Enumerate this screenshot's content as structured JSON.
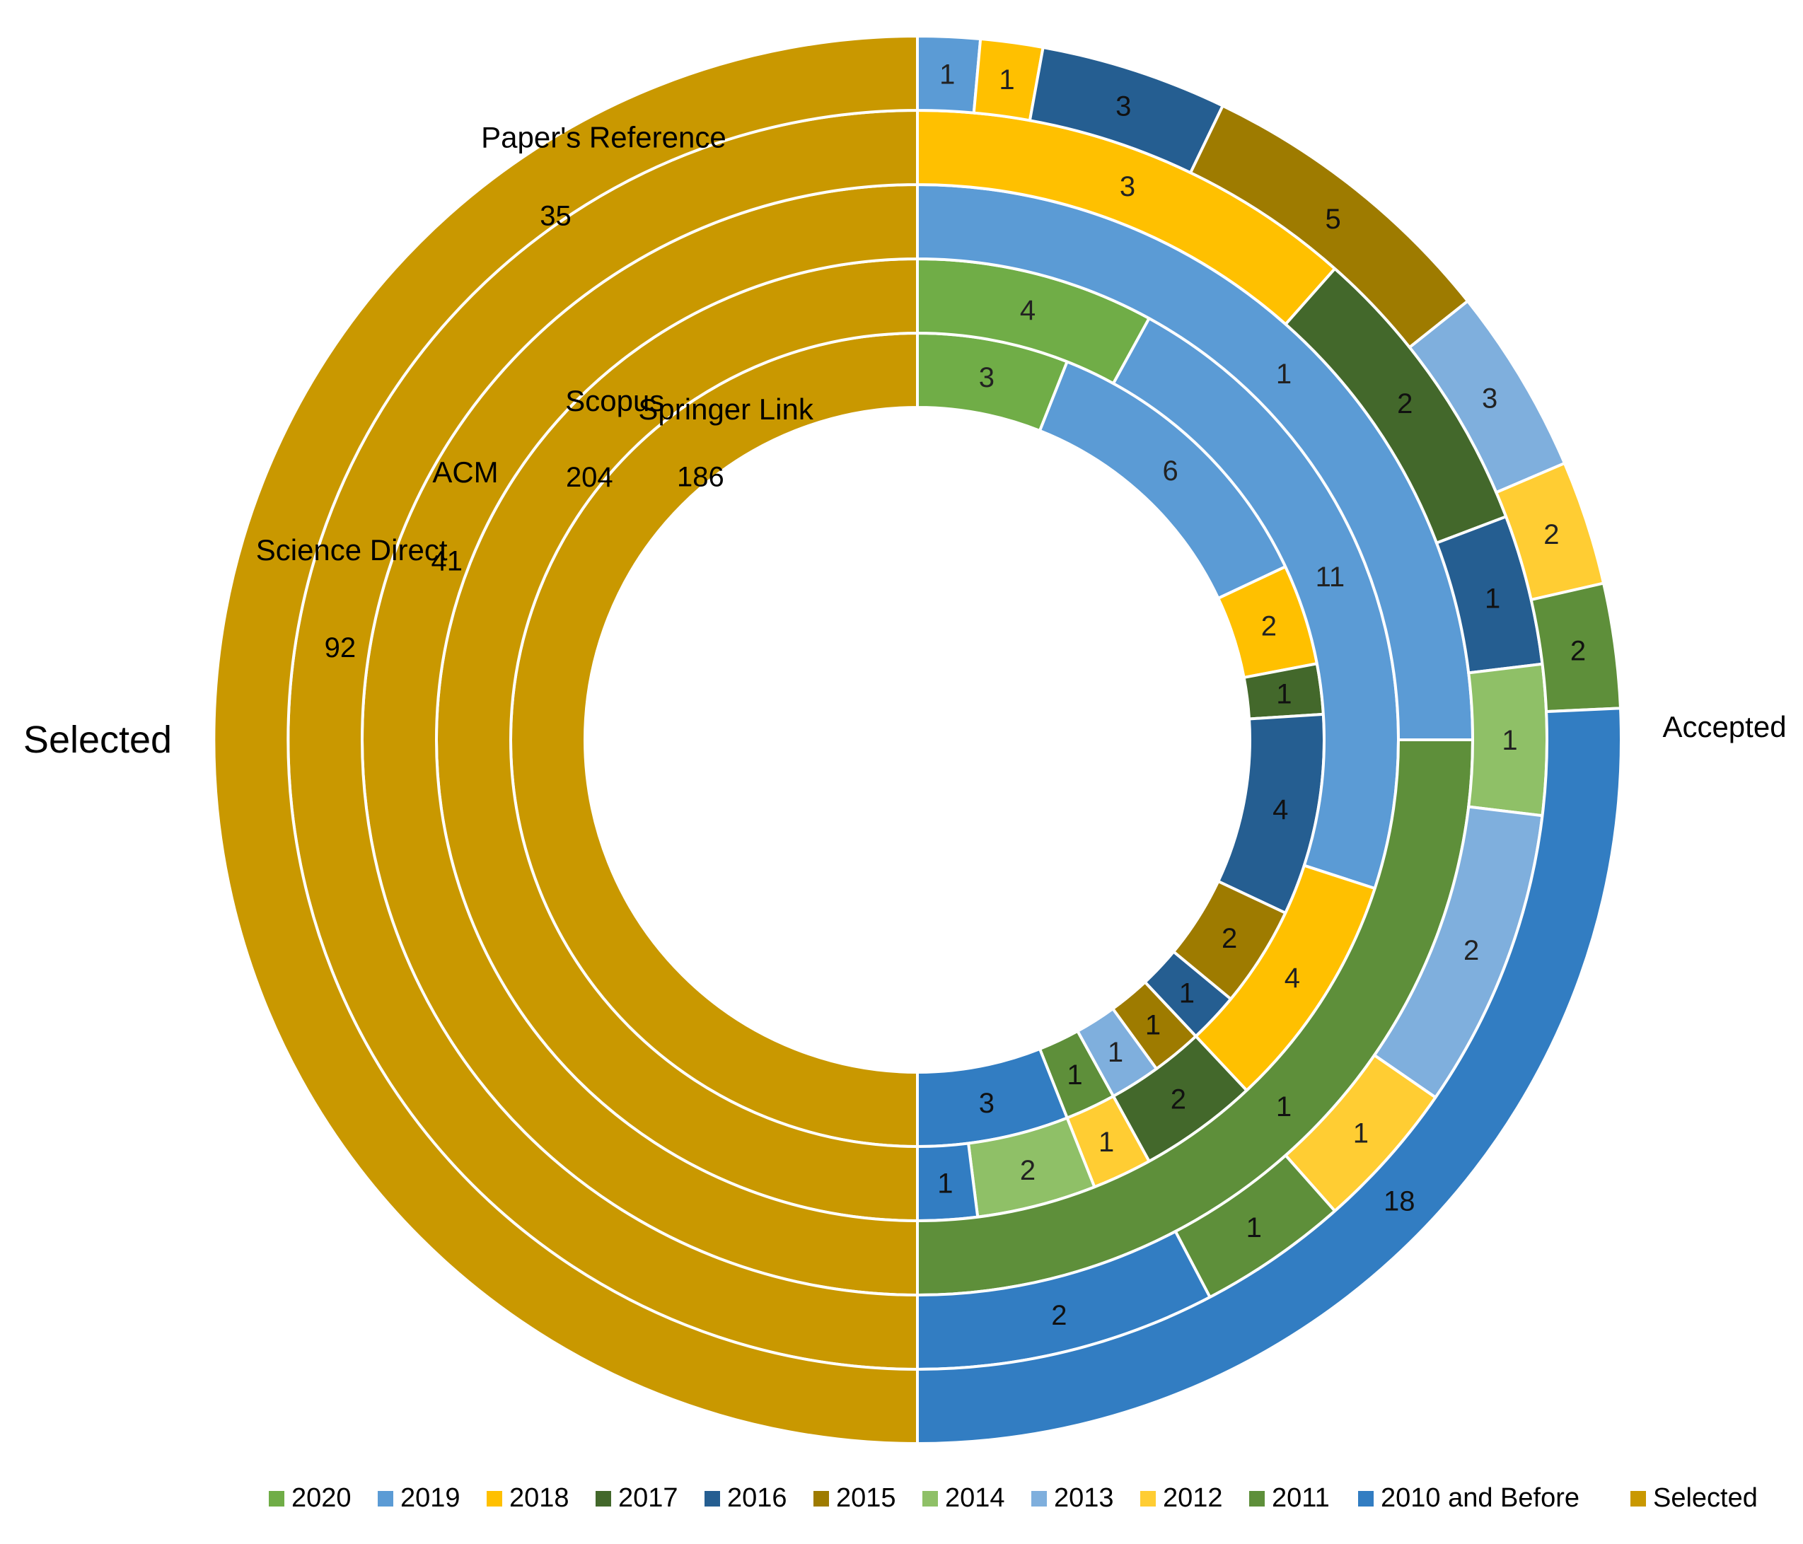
{
  "chart_data": {
    "type": "multi-level donut",
    "title": "",
    "left_label": "Selected",
    "right_label": "Accepted",
    "legend": [
      {
        "name": "2020",
        "color": "#70ad47"
      },
      {
        "name": "2019",
        "color": "#5b9bd5"
      },
      {
        "name": "2018",
        "color": "#ffc000"
      },
      {
        "name": "2017",
        "color": "#43682b"
      },
      {
        "name": "2016",
        "color": "#255e91"
      },
      {
        "name": "2015",
        "color": "#9e7b00"
      },
      {
        "name": "2014",
        "color": "#8fc067"
      },
      {
        "name": "2013",
        "color": "#7fafdd"
      },
      {
        "name": "2012",
        "color": "#ffcd33"
      },
      {
        "name": "2011",
        "color": "#5e8f3a"
      },
      {
        "name": "2010 and Before",
        "color": "#327dc2"
      },
      {
        "name": "Selected",
        "color": "#c99800"
      }
    ],
    "rings": [
      {
        "source": "Springer Link",
        "selected": "186",
        "accepted": [
          {
            "year": "2020",
            "value": 3
          },
          {
            "year": "2019",
            "value": 6
          },
          {
            "year": "2018",
            "value": 2
          },
          {
            "year": "2017",
            "value": 1
          },
          {
            "year": "2016",
            "value": 4
          },
          {
            "year": "2015",
            "value": 2
          },
          {
            "year": "2016",
            "value": 1
          },
          {
            "year": "2015",
            "value": 1
          },
          {
            "year": "2013",
            "value": 1
          },
          {
            "year": "2011",
            "value": 1
          },
          {
            "year": "2010 and Before",
            "value": 3
          }
        ]
      },
      {
        "source": "Scopus",
        "selected": "204",
        "accepted": [
          {
            "year": "2020",
            "value": 4
          },
          {
            "year": "2019",
            "value": 11
          },
          {
            "year": "2018",
            "value": 4
          },
          {
            "year": "2017",
            "value": 2
          },
          {
            "year": "2012",
            "value": 1
          },
          {
            "year": "2014",
            "value": 2
          },
          {
            "year": "2010 and Before",
            "value": 1
          }
        ]
      },
      {
        "source": "ACM",
        "selected": "41",
        "accepted": [
          {
            "year": "2019",
            "value": 1
          },
          {
            "year": "2011",
            "value": 1
          }
        ]
      },
      {
        "source": "Science Direct",
        "selected": "92",
        "accepted": [
          {
            "year": "2018",
            "value": 3
          },
          {
            "year": "2017",
            "value": 2
          },
          {
            "year": "2016",
            "value": 1
          },
          {
            "year": "2014",
            "value": 1
          },
          {
            "year": "2013",
            "value": 2
          },
          {
            "year": "2012",
            "value": 1
          },
          {
            "year": "2011",
            "value": 1
          },
          {
            "year": "2010 and Before",
            "value": 2
          }
        ]
      },
      {
        "source": "Paper's Reference",
        "selected": "35",
        "accepted": [
          {
            "year": "2019",
            "value": 1
          },
          {
            "year": "2018",
            "value": 1
          },
          {
            "year": "2016",
            "value": 3
          },
          {
            "year": "2015",
            "value": 5
          },
          {
            "year": "2013",
            "value": 3
          },
          {
            "year": "2012",
            "value": 2
          },
          {
            "year": "2011",
            "value": 2
          },
          {
            "year": "2010 and Before",
            "value": 18
          }
        ]
      }
    ]
  }
}
